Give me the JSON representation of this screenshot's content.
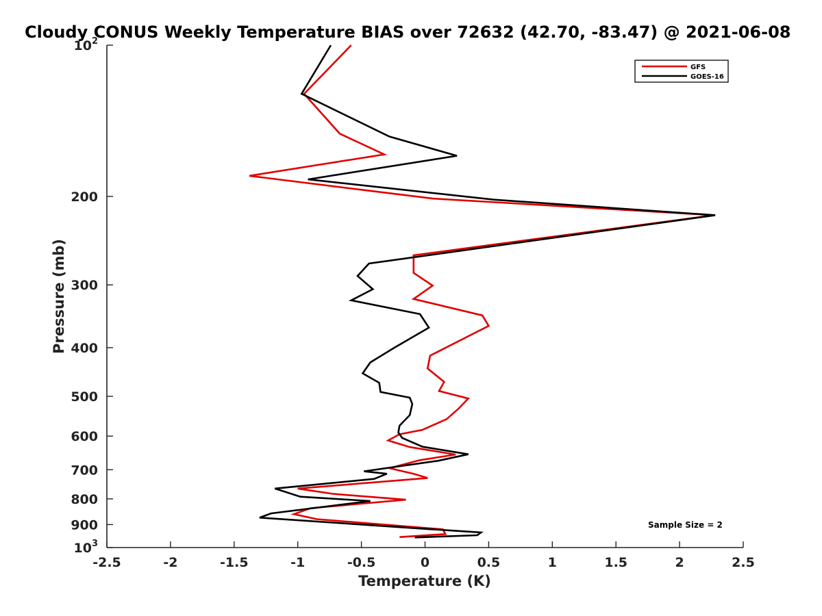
{
  "chart_data": {
    "type": "line",
    "title": "Cloudy CONUS Weekly Temperature BIAS over 72632 (42.70, -83.47) @ 2021-06-08",
    "xlabel": "Temperature (K)",
    "ylabel": "Pressure (mb)",
    "xlim": [
      -2.5,
      2.5
    ],
    "ylim": [
      100,
      1000
    ],
    "y_scale": "log",
    "y_reversed": true,
    "grid": false,
    "legend_position": "top-right",
    "x_ticks": [
      -2.5,
      -2,
      -1.5,
      -1,
      -0.5,
      0,
      0.5,
      1,
      1.5,
      2,
      2.5
    ],
    "x_tick_labels": [
      "-2.5",
      "-2",
      "-1.5",
      "-1",
      "-0.5",
      "0",
      "0.5",
      "1",
      "1.5",
      "2",
      "2.5"
    ],
    "y_ticks": [
      100,
      200,
      300,
      400,
      500,
      600,
      700,
      800,
      900,
      1000
    ],
    "y_tick_labels": [
      {
        "base": "10",
        "sup": "2"
      },
      {
        "base": "200",
        "sup": ""
      },
      {
        "base": "300",
        "sup": ""
      },
      {
        "base": "400",
        "sup": ""
      },
      {
        "base": "500",
        "sup": ""
      },
      {
        "base": "600",
        "sup": ""
      },
      {
        "base": "700",
        "sup": ""
      },
      {
        "base": "800",
        "sup": ""
      },
      {
        "base": "900",
        "sup": ""
      },
      {
        "base": "10",
        "sup": "3"
      }
    ],
    "series": [
      {
        "name": "GFS",
        "color": "#e00000",
        "points": [
          [
            -0.58,
            100
          ],
          [
            -0.95,
            125
          ],
          [
            -0.67,
            150
          ],
          [
            -0.32,
            165
          ],
          [
            -1.38,
            182
          ],
          [
            0.06,
            202
          ],
          [
            2.27,
            218
          ],
          [
            -0.09,
            262
          ],
          [
            -0.09,
            284
          ],
          [
            0.06,
            301
          ],
          [
            -0.09,
            320
          ],
          [
            0.45,
            345
          ],
          [
            0.5,
            362
          ],
          [
            0.04,
            415
          ],
          [
            0.02,
            440
          ],
          [
            0.15,
            468
          ],
          [
            0.11,
            488
          ],
          [
            0.34,
            505
          ],
          [
            0.26,
            530
          ],
          [
            0.17,
            555
          ],
          [
            -0.02,
            583
          ],
          [
            -0.2,
            595
          ],
          [
            -0.29,
            612
          ],
          [
            -0.12,
            631
          ],
          [
            0.24,
            653
          ],
          [
            -0.04,
            670
          ],
          [
            -0.28,
            695
          ],
          [
            -0.09,
            713
          ],
          [
            0.02,
            727
          ],
          [
            -1.0,
            763
          ],
          [
            -0.72,
            782
          ],
          [
            -0.15,
            803
          ],
          [
            -0.9,
            835
          ],
          [
            -1.03,
            858
          ],
          [
            -0.85,
            878
          ],
          [
            0.14,
            920
          ],
          [
            0.16,
            940
          ],
          [
            -0.2,
            953
          ]
        ]
      },
      {
        "name": "GOES-16",
        "color": "#000000",
        "points": [
          [
            -0.74,
            100
          ],
          [
            -0.97,
            125
          ],
          [
            -0.28,
            152
          ],
          [
            0.25,
            166
          ],
          [
            -0.92,
            185
          ],
          [
            0.54,
            203
          ],
          [
            2.28,
            218
          ],
          [
            -0.44,
            272
          ],
          [
            -0.53,
            288
          ],
          [
            -0.41,
            306
          ],
          [
            -0.58,
            322
          ],
          [
            -0.04,
            343
          ],
          [
            0.03,
            365
          ],
          [
            -0.24,
            400
          ],
          [
            -0.43,
            428
          ],
          [
            -0.49,
            450
          ],
          [
            -0.36,
            470
          ],
          [
            -0.35,
            490
          ],
          [
            -0.12,
            503
          ],
          [
            -0.1,
            518
          ],
          [
            -0.12,
            545
          ],
          [
            -0.2,
            572
          ],
          [
            -0.21,
            590
          ],
          [
            -0.18,
            605
          ],
          [
            -0.02,
            630
          ],
          [
            0.34,
            652
          ],
          [
            0.1,
            672
          ],
          [
            -0.48,
            705
          ],
          [
            -0.3,
            713
          ],
          [
            -0.4,
            730
          ],
          [
            -1.18,
            763
          ],
          [
            -0.98,
            792
          ],
          [
            -0.43,
            808
          ],
          [
            -1.21,
            855
          ],
          [
            -1.3,
            872
          ],
          [
            -0.02,
            917
          ],
          [
            0.44,
            933
          ],
          [
            0.41,
            945
          ],
          [
            -0.08,
            955
          ]
        ]
      }
    ],
    "annotations": [
      "Sample Size = 2"
    ]
  }
}
